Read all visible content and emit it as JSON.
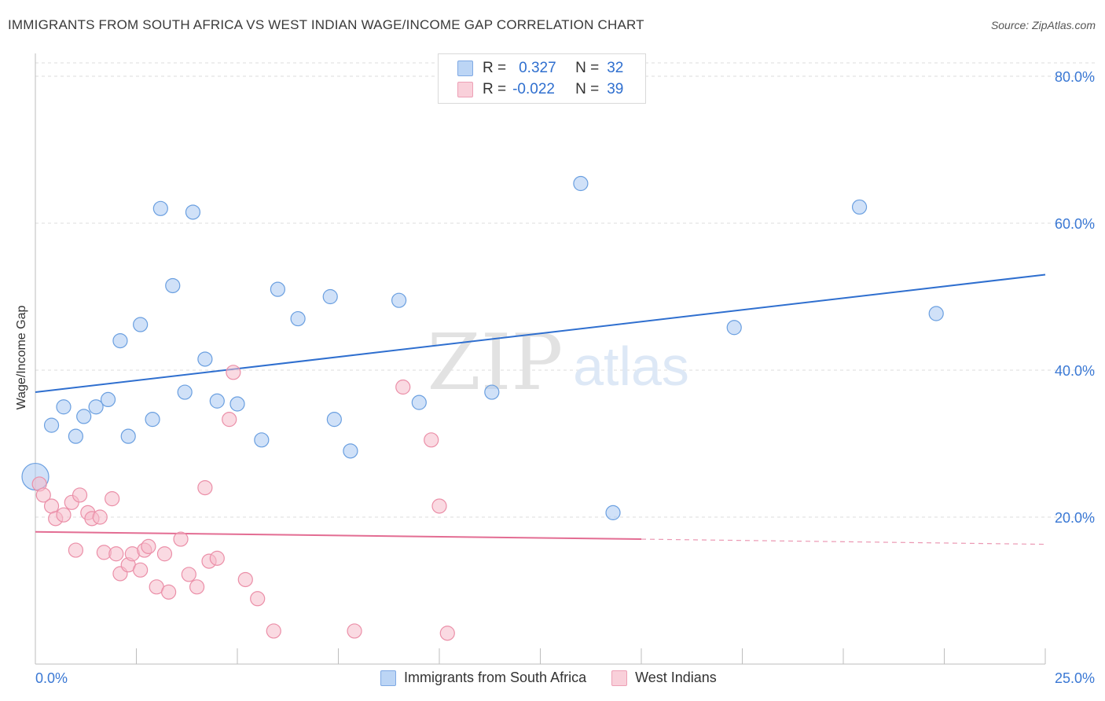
{
  "header": {
    "title": "IMMIGRANTS FROM SOUTH AFRICA VS WEST INDIAN WAGE/INCOME GAP CORRELATION CHART",
    "source": "Source: ZipAtlas.com"
  },
  "watermark": {
    "zip": "ZIP",
    "atlas": "atlas"
  },
  "legend_top": {
    "rows": [
      {
        "r_label": "R =",
        "r_value": "0.327",
        "n_label": "N =",
        "n_value": "32",
        "color": "#a9c8f2"
      },
      {
        "r_label": "R =",
        "r_value": "-0.022",
        "n_label": "N =",
        "n_value": "39",
        "color": "#f6bccb"
      }
    ]
  },
  "chart_data": {
    "type": "scatter",
    "title": "IMMIGRANTS FROM SOUTH AFRICA VS WEST INDIAN WAGE/INCOME GAP CORRELATION CHART",
    "xlabel": "",
    "ylabel": "Wage/Income Gap",
    "xlim": [
      0,
      25
    ],
    "ylim": [
      0,
      80
    ],
    "x_tick_labels": [
      "0.0%",
      "25.0%"
    ],
    "y_tick_labels": [
      "20.0%",
      "40.0%",
      "60.0%",
      "80.0%"
    ],
    "y_ticks": [
      20,
      40,
      60,
      80
    ],
    "grid": true,
    "legend_position": "bottom",
    "series": [
      {
        "name": "Immigrants from South Africa",
        "color": "#a9c8f2",
        "stroke": "#6a9fe0",
        "line_color": "#2f6fcf",
        "trend": {
          "x0": 0,
          "y0": 37.0,
          "x1": 25,
          "y1": 53.0
        },
        "points": [
          [
            0.0,
            25.5,
            "large"
          ],
          [
            0.4,
            32.5
          ],
          [
            0.7,
            35.0
          ],
          [
            1.0,
            31.0
          ],
          [
            1.2,
            33.7
          ],
          [
            1.5,
            35.0
          ],
          [
            1.8,
            36.0
          ],
          [
            2.1,
            44.0
          ],
          [
            2.3,
            31.0
          ],
          [
            2.6,
            46.2
          ],
          [
            2.9,
            33.3
          ],
          [
            3.1,
            62.0
          ],
          [
            3.4,
            51.5
          ],
          [
            3.7,
            37.0
          ],
          [
            3.9,
            61.5
          ],
          [
            4.2,
            41.5
          ],
          [
            4.5,
            35.8
          ],
          [
            5.0,
            35.4
          ],
          [
            5.6,
            30.5
          ],
          [
            6.0,
            51.0
          ],
          [
            6.5,
            47.0
          ],
          [
            7.3,
            50.0
          ],
          [
            7.4,
            33.3
          ],
          [
            7.8,
            29.0
          ],
          [
            9.0,
            49.5
          ],
          [
            9.5,
            35.6
          ],
          [
            11.3,
            37.0
          ],
          [
            13.5,
            65.4
          ],
          [
            14.3,
            20.6
          ],
          [
            17.3,
            45.8
          ],
          [
            20.4,
            62.2
          ],
          [
            22.3,
            47.7
          ]
        ]
      },
      {
        "name": "West Indians",
        "color": "#f6bccb",
        "stroke": "#eb8fa8",
        "line_color": "#e36d93",
        "trend": {
          "x0": 0,
          "y0": 18.0,
          "x1": 15,
          "y1": 17.0
        },
        "trend_dashed": {
          "x0": 15,
          "y0": 17.0,
          "x1": 25,
          "y1": 16.3
        },
        "points": [
          [
            0.1,
            24.5
          ],
          [
            0.2,
            23.0
          ],
          [
            0.4,
            21.5
          ],
          [
            0.5,
            19.8
          ],
          [
            0.7,
            20.3
          ],
          [
            0.9,
            22.0
          ],
          [
            1.0,
            15.5
          ],
          [
            1.1,
            23.0
          ],
          [
            1.3,
            20.6
          ],
          [
            1.4,
            19.8
          ],
          [
            1.6,
            20.0
          ],
          [
            1.7,
            15.2
          ],
          [
            1.9,
            22.5
          ],
          [
            2.0,
            15.0
          ],
          [
            2.1,
            12.3
          ],
          [
            2.3,
            13.5
          ],
          [
            2.4,
            15.0
          ],
          [
            2.6,
            12.8
          ],
          [
            2.7,
            15.5
          ],
          [
            2.8,
            16.0
          ],
          [
            3.0,
            10.5
          ],
          [
            3.2,
            15.0
          ],
          [
            3.3,
            9.8
          ],
          [
            3.6,
            17.0
          ],
          [
            3.8,
            12.2
          ],
          [
            4.0,
            10.5
          ],
          [
            4.2,
            24.0
          ],
          [
            4.3,
            14.0
          ],
          [
            4.5,
            14.4
          ],
          [
            4.8,
            33.3
          ],
          [
            4.9,
            39.7
          ],
          [
            5.2,
            11.5
          ],
          [
            5.5,
            8.9
          ],
          [
            5.9,
            4.5
          ],
          [
            7.9,
            4.5
          ],
          [
            9.1,
            37.7
          ],
          [
            9.8,
            30.5
          ],
          [
            10.0,
            21.5
          ],
          [
            10.2,
            4.2
          ]
        ]
      }
    ]
  }
}
